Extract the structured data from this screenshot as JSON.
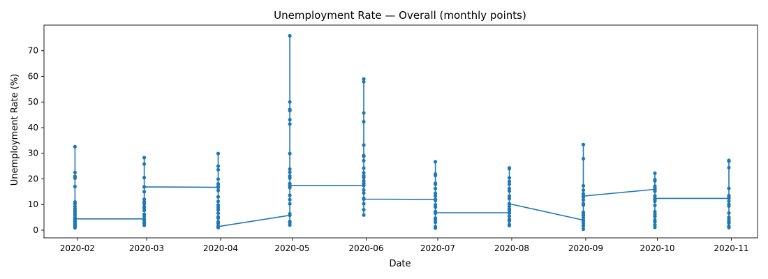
{
  "chart_data": {
    "type": "line",
    "title": "Unemployment Rate — Overall (monthly points)",
    "xlabel": "Date",
    "ylabel": "Unemployment Rate (%)",
    "x_ticks": [
      "2020-02",
      "2020-03",
      "2020-04",
      "2020-05",
      "2020-06",
      "2020-07",
      "2020-08",
      "2020-09",
      "2020-10",
      "2020-11"
    ],
    "y_ticks": [
      0,
      10,
      20,
      30,
      40,
      50,
      60,
      70
    ],
    "xlim": [
      "2020-01-18",
      "2020-11-12"
    ],
    "ylim": [
      -3,
      80
    ],
    "grid": false,
    "marker": "circle",
    "series": [
      {
        "color": "#1f77b4",
        "points": [
          {
            "date": "2020-01-31",
            "values": [
              7.0,
              4.8,
              2.0,
              3.2,
              1.3,
              10.2,
              17.0,
              20.3,
              22.5,
              32.6,
              9.2,
              5.9,
              4.1,
              2.6,
              0.9,
              11.0,
              8.3,
              6.1,
              5.0,
              3.6,
              1.6,
              21.0,
              7.5,
              4.4
            ]
          },
          {
            "date": "2020-02-29",
            "values": [
              4.4,
              2.6,
              1.9,
              11.0,
              16.9,
              15.0,
              12.0,
              20.5,
              25.8,
              28.3,
              10.2,
              9.1,
              7.7,
              6.2,
              5.5,
              3.8,
              3.0,
              8.6,
              12.0,
              16.9
            ]
          },
          {
            "date": "2020-03-31",
            "values": [
              16.7,
              1.6,
              1.0,
              2.6,
              3.3,
              6.6,
              7.9,
              11.2,
              13.0,
              15.5,
              17.2,
              19.9,
              23.6,
              25.0,
              29.9,
              18.1,
              9.8,
              5.2,
              4.7,
              8.8,
              1.4
            ]
          },
          {
            "date": "2020-04-30",
            "values": [
              5.8,
              2.0,
              2.9,
              3.4,
              6.4,
              10.3,
              11.9,
              13.6,
              16.6,
              17.2,
              18.2,
              20.3,
              21.1,
              22.6,
              23.8,
              29.9,
              41.4,
              43.1,
              46.6,
              47.1,
              50.0,
              75.8,
              17.5
            ]
          },
          {
            "date": "2020-05-31",
            "values": [
              17.4,
              5.9,
              8.0,
              10.3,
              12.4,
              14.5,
              15.7,
              17.6,
              18.3,
              19.2,
              20.5,
              21.2,
              22.4,
              24.2,
              27.1,
              28.8,
              29.1,
              33.2,
              42.3,
              45.7,
              57.9,
              59.0,
              12.1
            ]
          },
          {
            "date": "2020-06-30",
            "values": [
              12.0,
              0.8,
              1.3,
              3.1,
              4.0,
              4.7,
              6.6,
              7.3,
              9.0,
              9.9,
              11.6,
              13.3,
              14.4,
              16.2,
              17.9,
              18.3,
              21.3,
              21.9,
              26.7,
              6.8
            ]
          },
          {
            "date": "2020-07-31",
            "values": [
              6.8,
              1.8,
              2.2,
              3.6,
              4.2,
              5.5,
              6.7,
              7.7,
              8.3,
              9.3,
              10.3,
              12.3,
              13.3,
              15.3,
              16.2,
              17.9,
              19.0,
              20.4,
              24.0,
              24.3,
              10.3
            ]
          },
          {
            "date": "2020-08-31",
            "values": [
              3.9,
              0.4,
              1.6,
              2.5,
              3.5,
              4.9,
              5.8,
              6.4,
              7.0,
              9.8,
              10.4,
              11.8,
              12.9,
              14.2,
              15.6,
              17.3,
              27.9,
              33.4,
              13.3
            ]
          },
          {
            "date": "2020-09-30",
            "values": [
              15.9,
              1.1,
              2.1,
              3.2,
              4.0,
              5.3,
              6.2,
              7.2,
              9.7,
              11.3,
              11.9,
              13.4,
              15.2,
              16.4,
              17.2,
              19.2,
              19.7,
              22.2,
              12.4
            ]
          },
          {
            "date": "2020-10-31",
            "values": [
              12.4,
              1.0,
              1.6,
              2.8,
              3.2,
              4.2,
              5.0,
              6.7,
              9.4,
              10.1,
              11.3,
              12.9,
              13.5,
              16.3,
              24.4,
              26.9,
              27.2,
              3.2
            ]
          }
        ]
      }
    ]
  }
}
